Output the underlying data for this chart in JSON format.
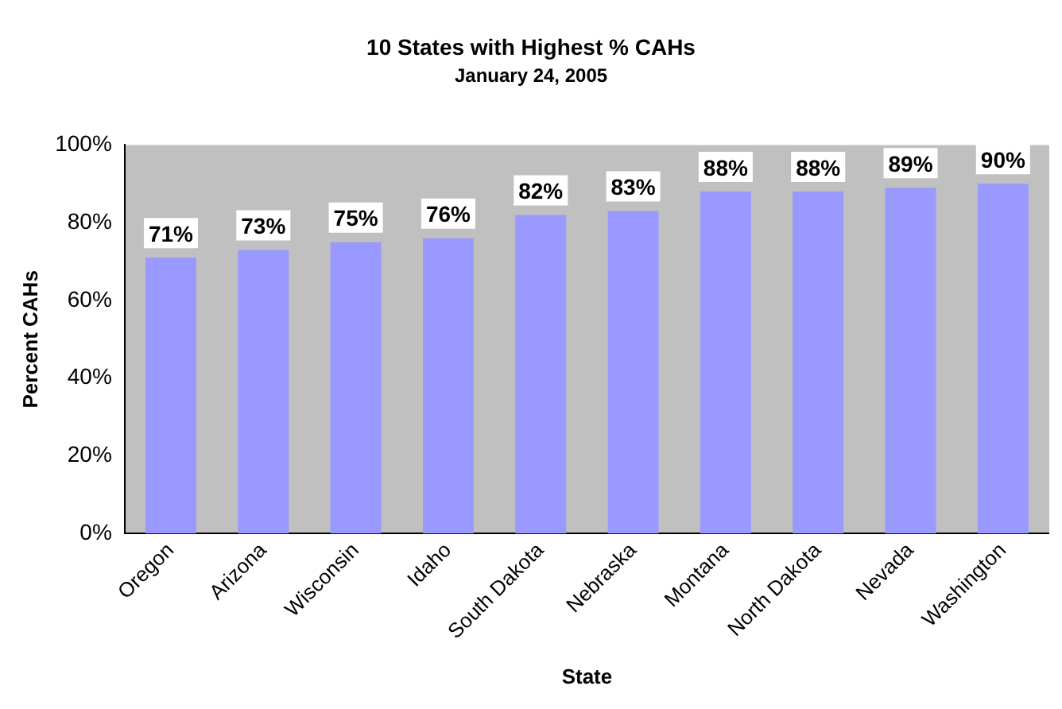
{
  "chart_data": {
    "type": "bar",
    "title": "10 States with Highest % CAHs",
    "subtitle": "January 24, 2005",
    "xlabel": "State",
    "ylabel": "Percent CAHs",
    "categories": [
      "Oregon",
      "Arizona",
      "Wisconsin",
      "Idaho",
      "South Dakota",
      "Nebraska",
      "Montana",
      "North Dakota",
      "Nevada",
      "Washington"
    ],
    "values": [
      71,
      73,
      75,
      76,
      82,
      83,
      88,
      88,
      89,
      90
    ],
    "value_labels": [
      "71%",
      "73%",
      "75%",
      "76%",
      "82%",
      "83%",
      "88%",
      "88%",
      "89%",
      "90%"
    ],
    "color": "#9999ff",
    "ylim": [
      0,
      100
    ],
    "yticks": [
      {
        "value": 0,
        "label": "0%"
      },
      {
        "value": 20,
        "label": "20%"
      },
      {
        "value": 40,
        "label": "40%"
      },
      {
        "value": 60,
        "label": "60%"
      },
      {
        "value": 80,
        "label": "80%"
      },
      {
        "value": 100,
        "label": "100%"
      }
    ],
    "grid": false,
    "legend": false
  }
}
